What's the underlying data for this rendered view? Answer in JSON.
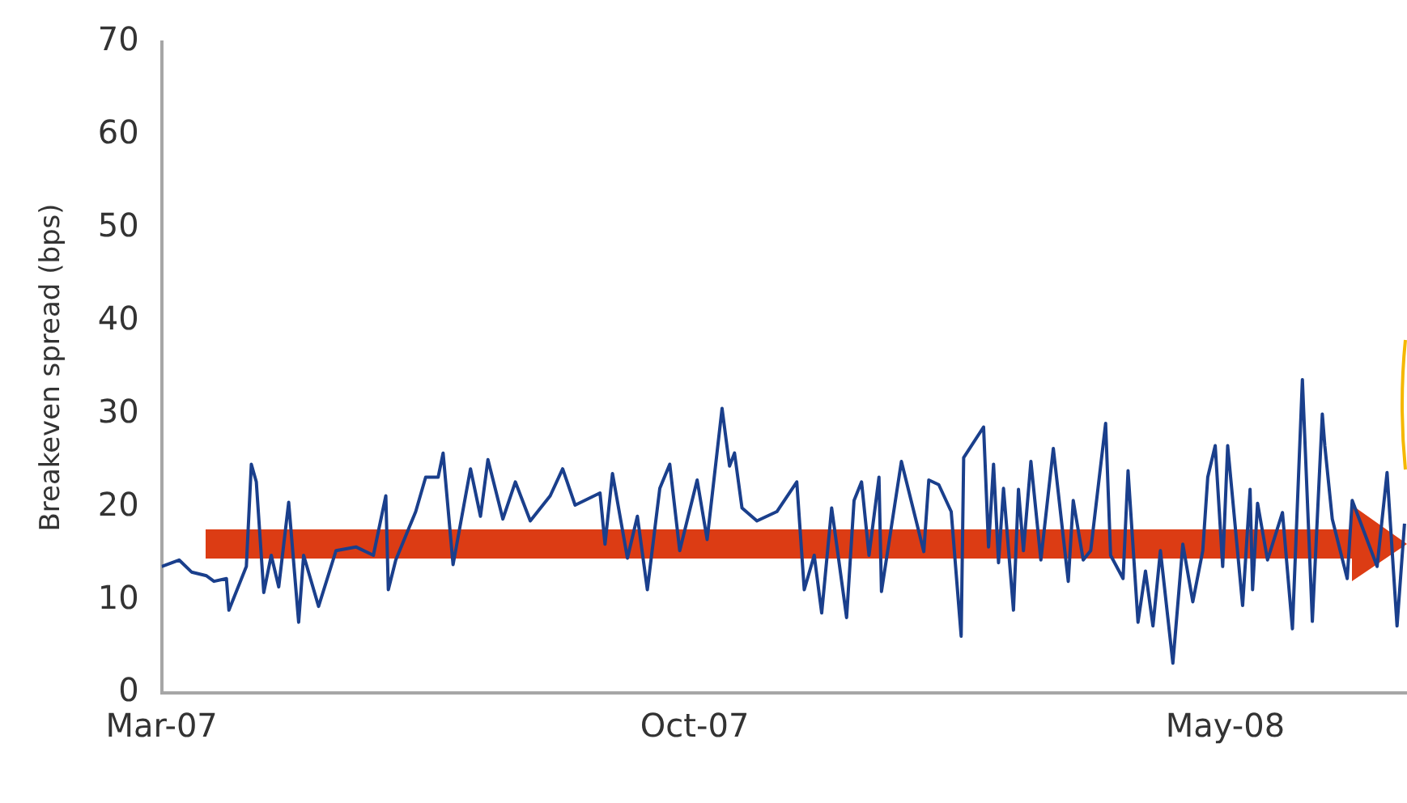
{
  "chart_data": {
    "type": "line",
    "ylabel": "Breakeven spread (bps)",
    "x": [
      "2007-03-01",
      "2007-03-08",
      "2007-03-13",
      "2007-03-19",
      "2007-03-22",
      "2007-03-27",
      "2007-03-28",
      "2007-04-04",
      "2007-04-06",
      "2007-04-08",
      "2007-04-11",
      "2007-04-14",
      "2007-04-17",
      "2007-04-21",
      "2007-04-25",
      "2007-04-27",
      "2007-05-03",
      "2007-05-10",
      "2007-05-18",
      "2007-05-25",
      "2007-05-30",
      "2007-05-31",
      "2007-06-03",
      "2007-06-11",
      "2007-06-15",
      "2007-06-20",
      "2007-06-22",
      "2007-06-26",
      "2007-07-03",
      "2007-07-07",
      "2007-07-10",
      "2007-07-16",
      "2007-07-21",
      "2007-07-27",
      "2007-08-04",
      "2007-08-09",
      "2007-08-14",
      "2007-08-24",
      "2007-08-26",
      "2007-08-29",
      "2007-09-04",
      "2007-09-08",
      "2007-09-12",
      "2007-09-17",
      "2007-09-21",
      "2007-09-25",
      "2007-10-02",
      "2007-10-06",
      "2007-10-12",
      "2007-10-15",
      "2007-10-17",
      "2007-10-20",
      "2007-10-26",
      "2007-11-03",
      "2007-11-11",
      "2007-11-14",
      "2007-11-18",
      "2007-11-21",
      "2007-11-25",
      "2007-12-01",
      "2007-12-04",
      "2007-12-07",
      "2007-12-10",
      "2007-12-14",
      "2007-12-15",
      "2007-12-23",
      "2008-01-01",
      "2008-01-03",
      "2008-01-07",
      "2008-01-12",
      "2008-01-16",
      "2008-01-17",
      "2008-01-25",
      "2008-01-27",
      "2008-01-29",
      "2008-01-31",
      "2008-02-02",
      "2008-02-06",
      "2008-02-08",
      "2008-02-10",
      "2008-02-13",
      "2008-02-17",
      "2008-02-22",
      "2008-02-28",
      "2008-03-01",
      "2008-03-05",
      "2008-03-08",
      "2008-03-14",
      "2008-03-16",
      "2008-03-21",
      "2008-03-23",
      "2008-03-27",
      "2008-03-30",
      "2008-04-02",
      "2008-04-05",
      "2008-04-10",
      "2008-04-14",
      "2008-04-18",
      "2008-04-22",
      "2008-04-24",
      "2008-04-27",
      "2008-04-30",
      "2008-05-02",
      "2008-05-08",
      "2008-05-11",
      "2008-05-12",
      "2008-05-14",
      "2008-05-18",
      "2008-05-24",
      "2008-05-28",
      "2008-06-01",
      "2008-06-05",
      "2008-06-09",
      "2008-06-10",
      "2008-06-13",
      "2008-06-19",
      "2008-06-21",
      "2008-07-01",
      "2008-07-05",
      "2008-07-09",
      "2008-07-12"
    ],
    "series": [
      {
        "color": "#1a3f8c",
        "values": [
          13.6,
          14.3,
          13,
          12.6,
          12,
          12.3,
          8.9,
          13.6,
          24.6,
          22.7,
          10.8,
          14.8,
          11.4,
          20.5,
          7.6,
          14.8,
          9.3,
          15.3,
          15.7,
          14.8,
          21.2,
          11.1,
          14.3,
          19.5,
          23.2,
          23.2,
          25.8,
          13.8,
          24.1,
          19,
          25.1,
          18.7,
          22.7,
          18.5,
          21.2,
          24.1,
          20.2,
          21.5,
          16,
          23.6,
          14.5,
          19,
          11.1,
          22,
          24.6,
          15.3,
          22.9,
          16.5,
          30.6,
          24.4,
          25.8,
          19.9,
          18.5,
          19.5,
          22.7,
          11.1,
          14.8,
          8.6,
          19.9,
          8.1,
          20.7,
          22.7,
          14.8,
          23.2,
          10.9,
          24.9,
          15.2,
          22.9,
          22.4,
          19.5,
          6.1,
          25.3,
          28.6,
          15.7,
          24.6,
          14,
          22,
          8.9,
          21.9,
          15.3,
          24.9,
          14.3,
          26.3,
          12,
          20.7,
          14.3,
          15.3,
          29,
          14.8,
          12.3,
          23.9,
          7.6,
          13.1,
          7.2,
          15.3,
          3.2,
          16,
          9.8,
          15.3,
          23.2,
          26.6,
          13.6,
          26.6,
          9.4,
          21.9,
          11.1,
          20.4,
          14.3,
          19.4,
          6.9,
          33.7,
          7.7,
          30,
          26.6,
          18.7,
          12.3,
          20.7,
          13.6,
          23.7,
          7.2,
          18.2
        ]
      }
    ],
    "xlim": [
      "2007-03-01",
      "2008-07-13"
    ],
    "xticks": [
      {
        "value": "2007-03-01",
        "label": "Mar-07"
      },
      {
        "value": "2007-10-01",
        "label": "Oct-07"
      },
      {
        "value": "2008-05-01",
        "label": "May-08"
      }
    ],
    "ylim": [
      0,
      70
    ],
    "yticks": [
      0,
      10,
      20,
      30,
      40,
      50,
      60,
      70
    ],
    "grid": false,
    "legend": false,
    "marker": "none",
    "line_style": "solid"
  }
}
